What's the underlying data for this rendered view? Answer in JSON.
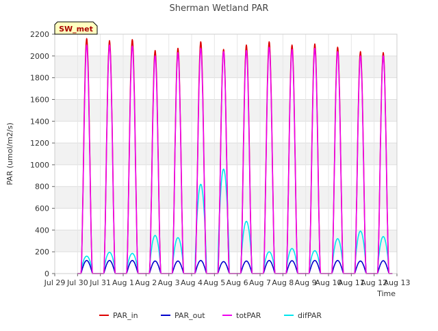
{
  "chart_data": {
    "type": "line",
    "title": "Sherman Wetland PAR",
    "badge": "SW_met",
    "xlabel": "Time",
    "ylabel": "PAR (umol/m2/s)",
    "ylim": [
      0,
      2200
    ],
    "yticks": [
      0,
      200,
      400,
      600,
      800,
      1000,
      1200,
      1400,
      1600,
      1800,
      2000,
      2200
    ],
    "xlim": [
      0,
      15
    ],
    "xtick_labels": [
      "Jul 29",
      "Jul 30",
      "Jul 31",
      "Aug 1",
      "Aug 2",
      "Aug 3",
      "Aug 4",
      "Aug 5",
      "Aug 6",
      "Aug 7",
      "Aug 8",
      "Aug 9",
      "Aug 10",
      "Aug 11",
      "Aug 12",
      "Aug 13"
    ],
    "grid": true,
    "legend_position": "bottom",
    "colors": {
      "PAR_in": "#dd0000",
      "PAR_out": "#0000cc",
      "totPAR": "#ee00ee",
      "difPAR": "#00e5ee"
    },
    "series": [
      {
        "name": "PAR_in",
        "x": [
          1.4,
          2.4,
          3.4,
          4.4,
          5.4,
          6.4,
          7.4,
          8.4,
          9.4,
          10.4,
          11.4,
          12.4,
          13.4,
          14.4
        ],
        "values": [
          2160,
          2140,
          2150,
          2050,
          2070,
          2130,
          2060,
          2100,
          2130,
          2100,
          2110,
          2080,
          2040,
          2030
        ]
      },
      {
        "name": "PAR_out",
        "x": [
          1.4,
          2.4,
          3.4,
          4.4,
          5.4,
          6.4,
          7.4,
          8.4,
          9.4,
          10.4,
          11.4,
          12.4,
          13.4,
          14.4
        ],
        "values": [
          120,
          120,
          120,
          115,
          115,
          120,
          110,
          115,
          120,
          118,
          120,
          120,
          115,
          118
        ]
      },
      {
        "name": "totPAR",
        "x": [
          1.4,
          2.4,
          3.4,
          4.4,
          5.4,
          6.4,
          7.4,
          8.4,
          9.4,
          10.4,
          11.4,
          12.4,
          13.4,
          14.4
        ],
        "values": [
          2100,
          2100,
          2090,
          2000,
          2030,
          2070,
          2040,
          2050,
          2080,
          2060,
          2070,
          2040,
          2000,
          2000
        ]
      },
      {
        "name": "difPAR",
        "x": [
          1.4,
          2.4,
          3.4,
          4.4,
          5.4,
          6.4,
          7.4,
          8.4,
          9.4,
          10.4,
          11.4,
          12.4,
          13.4,
          14.4
        ],
        "values": [
          160,
          195,
          185,
          350,
          330,
          820,
          960,
          480,
          200,
          230,
          210,
          320,
          390,
          340
        ]
      }
    ]
  }
}
